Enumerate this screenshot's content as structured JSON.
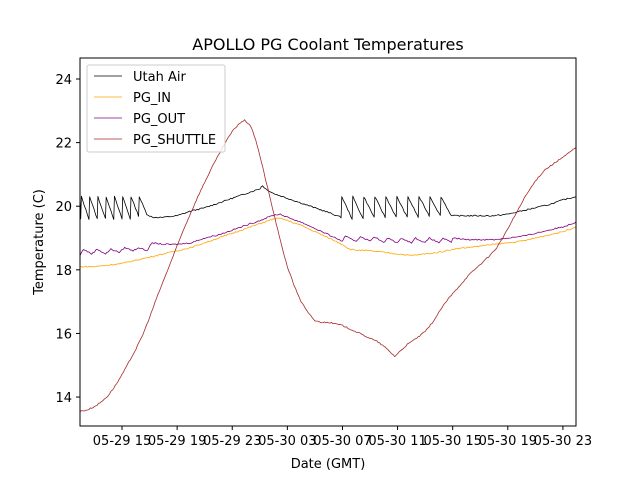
{
  "chart_data": {
    "type": "line",
    "title": "APOLLO PG Coolant Temperatures",
    "xlabel": "Date (GMT)",
    "ylabel": "Temperature (C)",
    "x_units": "hours since 05-29 00:00 GMT",
    "xlim": [
      11.95,
      47.95
    ],
    "ylim": [
      13.09,
      24.66
    ],
    "x_ticks": [
      {
        "value": 15,
        "label": "05-29 15"
      },
      {
        "value": 19,
        "label": "05-29 19"
      },
      {
        "value": 23,
        "label": "05-29 23"
      },
      {
        "value": 27,
        "label": "05-30 03"
      },
      {
        "value": 31,
        "label": "05-30 07"
      },
      {
        "value": 35,
        "label": "05-30 11"
      },
      {
        "value": 39,
        "label": "05-30 15"
      },
      {
        "value": 43,
        "label": "05-30 19"
      },
      {
        "value": 47,
        "label": "05-30 23"
      }
    ],
    "y_ticks": [
      14,
      16,
      18,
      20,
      22,
      24
    ],
    "grid": false,
    "legend_position": "top-left",
    "series": [
      {
        "name": "Utah Air",
        "color": "#000000",
        "points": [
          [
            11.95,
            20.3
          ],
          [
            12.0,
            19.6
          ],
          [
            12.05,
            20.3
          ],
          [
            12.6,
            19.6
          ],
          [
            12.65,
            20.3
          ],
          [
            13.2,
            19.6
          ],
          [
            13.25,
            20.3
          ],
          [
            13.8,
            19.6
          ],
          [
            13.85,
            20.3
          ],
          [
            14.4,
            19.6
          ],
          [
            14.45,
            20.3
          ],
          [
            15.0,
            19.6
          ],
          [
            15.05,
            20.3
          ],
          [
            15.6,
            19.6
          ],
          [
            15.65,
            20.3
          ],
          [
            16.2,
            19.7
          ],
          [
            16.25,
            20.3
          ],
          [
            16.8,
            19.75
          ],
          [
            17.2,
            19.65
          ],
          [
            18.0,
            19.65
          ],
          [
            19.0,
            19.7
          ],
          [
            20.0,
            19.85
          ],
          [
            21.0,
            19.95
          ],
          [
            22.0,
            20.1
          ],
          [
            23.0,
            20.25
          ],
          [
            24.0,
            20.4
          ],
          [
            25.0,
            20.55
          ],
          [
            25.2,
            20.65
          ],
          [
            25.4,
            20.55
          ],
          [
            26.0,
            20.4
          ],
          [
            27.0,
            20.25
          ],
          [
            28.0,
            20.1
          ],
          [
            29.0,
            19.95
          ],
          [
            30.0,
            19.8
          ],
          [
            30.9,
            19.65
          ],
          [
            30.95,
            20.3
          ],
          [
            31.7,
            19.6
          ],
          [
            31.75,
            20.3
          ],
          [
            32.5,
            19.6
          ],
          [
            32.55,
            20.3
          ],
          [
            33.3,
            19.65
          ],
          [
            33.35,
            20.3
          ],
          [
            34.1,
            19.65
          ],
          [
            34.15,
            20.3
          ],
          [
            34.9,
            19.65
          ],
          [
            34.95,
            20.3
          ],
          [
            35.7,
            19.65
          ],
          [
            35.75,
            20.3
          ],
          [
            36.5,
            19.65
          ],
          [
            36.55,
            20.3
          ],
          [
            37.3,
            19.7
          ],
          [
            37.35,
            20.3
          ],
          [
            38.1,
            19.7
          ],
          [
            38.15,
            20.3
          ],
          [
            38.9,
            19.7
          ],
          [
            39.5,
            19.7
          ],
          [
            40.0,
            19.7
          ],
          [
            41.0,
            19.7
          ],
          [
            42.0,
            19.7
          ],
          [
            43.0,
            19.75
          ],
          [
            44.0,
            19.85
          ],
          [
            45.0,
            19.95
          ],
          [
            46.0,
            20.05
          ],
          [
            47.0,
            20.2
          ],
          [
            47.95,
            20.3
          ]
        ]
      },
      {
        "name": "PG_IN",
        "color": "#FFA500",
        "points": [
          [
            11.95,
            18.1
          ],
          [
            13.0,
            18.1
          ],
          [
            14.0,
            18.15
          ],
          [
            15.0,
            18.2
          ],
          [
            16.0,
            18.3
          ],
          [
            17.0,
            18.4
          ],
          [
            18.0,
            18.5
          ],
          [
            19.0,
            18.6
          ],
          [
            20.0,
            18.7
          ],
          [
            21.0,
            18.85
          ],
          [
            22.0,
            19.0
          ],
          [
            23.0,
            19.15
          ],
          [
            24.0,
            19.3
          ],
          [
            25.0,
            19.45
          ],
          [
            26.0,
            19.6
          ],
          [
            26.5,
            19.62
          ],
          [
            27.0,
            19.55
          ],
          [
            28.0,
            19.4
          ],
          [
            29.0,
            19.2
          ],
          [
            30.0,
            19.0
          ],
          [
            31.0,
            18.8
          ],
          [
            31.5,
            18.65
          ],
          [
            32.0,
            18.62
          ],
          [
            33.0,
            18.6
          ],
          [
            34.0,
            18.55
          ],
          [
            35.0,
            18.5
          ],
          [
            36.0,
            18.45
          ],
          [
            37.0,
            18.5
          ],
          [
            38.0,
            18.55
          ],
          [
            39.0,
            18.65
          ],
          [
            40.0,
            18.7
          ],
          [
            41.0,
            18.75
          ],
          [
            42.0,
            18.8
          ],
          [
            43.0,
            18.85
          ],
          [
            44.0,
            18.9
          ],
          [
            45.0,
            19.0
          ],
          [
            46.0,
            19.1
          ],
          [
            47.0,
            19.2
          ],
          [
            47.95,
            19.35
          ]
        ]
      },
      {
        "name": "PG_OUT",
        "color": "#800080",
        "points": [
          [
            11.95,
            18.45
          ],
          [
            12.2,
            18.65
          ],
          [
            12.8,
            18.5
          ],
          [
            13.2,
            18.65
          ],
          [
            13.8,
            18.5
          ],
          [
            14.2,
            18.65
          ],
          [
            14.8,
            18.55
          ],
          [
            15.2,
            18.7
          ],
          [
            15.8,
            18.6
          ],
          [
            16.2,
            18.7
          ],
          [
            16.8,
            18.6
          ],
          [
            17.2,
            18.85
          ],
          [
            18.0,
            18.8
          ],
          [
            19.0,
            18.8
          ],
          [
            20.0,
            18.85
          ],
          [
            21.0,
            19.0
          ],
          [
            22.0,
            19.1
          ],
          [
            23.0,
            19.25
          ],
          [
            24.0,
            19.4
          ],
          [
            25.0,
            19.55
          ],
          [
            26.0,
            19.72
          ],
          [
            26.5,
            19.75
          ],
          [
            27.0,
            19.65
          ],
          [
            28.0,
            19.5
          ],
          [
            29.0,
            19.3
          ],
          [
            30.0,
            19.1
          ],
          [
            31.0,
            18.9
          ],
          [
            31.2,
            19.05
          ],
          [
            32.0,
            18.9
          ],
          [
            32.3,
            19.05
          ],
          [
            33.0,
            18.9
          ],
          [
            33.3,
            19.05
          ],
          [
            34.0,
            18.85
          ],
          [
            34.3,
            19.0
          ],
          [
            35.0,
            18.85
          ],
          [
            35.3,
            19.0
          ],
          [
            36.0,
            18.85
          ],
          [
            36.3,
            19.0
          ],
          [
            37.0,
            18.85
          ],
          [
            37.3,
            19.0
          ],
          [
            38.0,
            18.85
          ],
          [
            38.3,
            19.0
          ],
          [
            38.9,
            18.85
          ],
          [
            39.0,
            19.0
          ],
          [
            40.0,
            18.95
          ],
          [
            41.0,
            18.95
          ],
          [
            42.0,
            18.95
          ],
          [
            43.0,
            19.0
          ],
          [
            44.0,
            19.05
          ],
          [
            45.0,
            19.15
          ],
          [
            46.0,
            19.25
          ],
          [
            47.0,
            19.35
          ],
          [
            47.95,
            19.5
          ]
        ]
      },
      {
        "name": "PG_SHUTTLE",
        "color": "#A52A2A",
        "points": [
          [
            11.95,
            13.55
          ],
          [
            12.5,
            13.6
          ],
          [
            13.0,
            13.7
          ],
          [
            13.5,
            13.85
          ],
          [
            14.0,
            14.05
          ],
          [
            14.5,
            14.35
          ],
          [
            15.0,
            14.7
          ],
          [
            15.5,
            15.1
          ],
          [
            16.0,
            15.5
          ],
          [
            16.5,
            15.95
          ],
          [
            17.0,
            16.5
          ],
          [
            17.5,
            17.1
          ],
          [
            18.0,
            17.65
          ],
          [
            18.5,
            18.2
          ],
          [
            19.0,
            18.75
          ],
          [
            19.5,
            19.3
          ],
          [
            20.0,
            19.8
          ],
          [
            20.5,
            20.3
          ],
          [
            21.0,
            20.75
          ],
          [
            21.5,
            21.2
          ],
          [
            22.0,
            21.6
          ],
          [
            22.5,
            22.0
          ],
          [
            23.0,
            22.35
          ],
          [
            23.5,
            22.6
          ],
          [
            23.9,
            22.7
          ],
          [
            24.3,
            22.55
          ],
          [
            24.7,
            22.1
          ],
          [
            25.0,
            21.6
          ],
          [
            25.5,
            20.7
          ],
          [
            26.0,
            19.8
          ],
          [
            26.5,
            18.9
          ],
          [
            27.0,
            18.1
          ],
          [
            27.5,
            17.5
          ],
          [
            28.0,
            17.0
          ],
          [
            28.5,
            16.65
          ],
          [
            29.0,
            16.4
          ],
          [
            29.5,
            16.35
          ],
          [
            30.0,
            16.35
          ],
          [
            30.5,
            16.3
          ],
          [
            31.0,
            16.25
          ],
          [
            31.5,
            16.15
          ],
          [
            32.0,
            16.05
          ],
          [
            32.5,
            15.95
          ],
          [
            33.0,
            15.85
          ],
          [
            33.5,
            15.75
          ],
          [
            34.0,
            15.6
          ],
          [
            34.5,
            15.4
          ],
          [
            34.8,
            15.28
          ],
          [
            35.2,
            15.45
          ],
          [
            35.7,
            15.65
          ],
          [
            36.2,
            15.8
          ],
          [
            36.7,
            15.95
          ],
          [
            37.2,
            16.15
          ],
          [
            37.7,
            16.45
          ],
          [
            38.2,
            16.8
          ],
          [
            38.7,
            17.1
          ],
          [
            39.2,
            17.35
          ],
          [
            39.7,
            17.6
          ],
          [
            40.2,
            17.85
          ],
          [
            40.7,
            18.05
          ],
          [
            41.2,
            18.25
          ],
          [
            41.7,
            18.45
          ],
          [
            42.2,
            18.7
          ],
          [
            42.7,
            19.05
          ],
          [
            43.2,
            19.45
          ],
          [
            43.7,
            19.85
          ],
          [
            44.2,
            20.25
          ],
          [
            44.7,
            20.6
          ],
          [
            45.2,
            20.9
          ],
          [
            45.7,
            21.15
          ],
          [
            46.2,
            21.3
          ],
          [
            46.7,
            21.45
          ],
          [
            47.2,
            21.6
          ],
          [
            47.95,
            21.85
          ]
        ]
      }
    ]
  }
}
